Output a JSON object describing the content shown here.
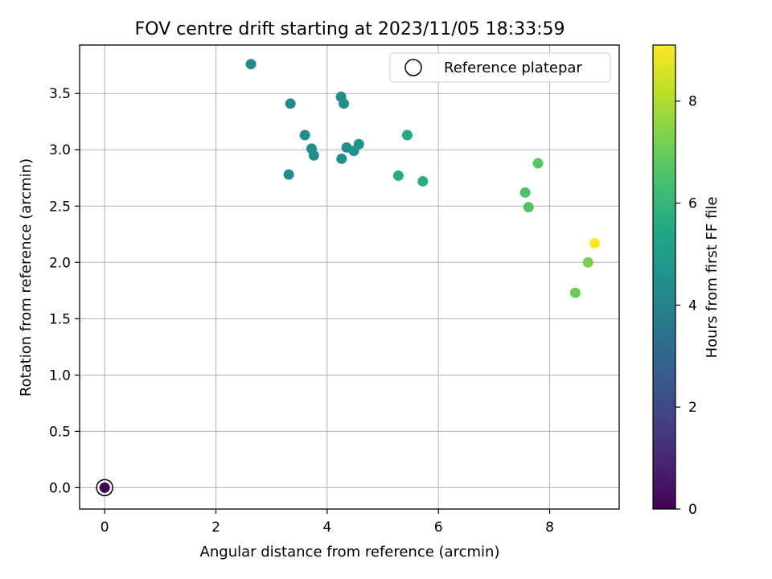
{
  "chart_data": {
    "type": "scatter",
    "title": "FOV centre drift starting at 2023/11/05 18:33:59",
    "xlabel": "Angular distance from reference (arcmin)",
    "ylabel": "Rotation from reference (arcmin)",
    "xlim": [
      -0.45,
      9.25
    ],
    "ylim": [
      -0.19,
      3.93
    ],
    "xticks": [
      0,
      2,
      4,
      6,
      8
    ],
    "xtick_labels": [
      "0",
      "2",
      "4",
      "6",
      "8"
    ],
    "yticks": [
      0.0,
      0.5,
      1.0,
      1.5,
      2.0,
      2.5,
      3.0,
      3.5
    ],
    "ytick_labels": [
      "0.0",
      "0.5",
      "1.0",
      "1.5",
      "2.0",
      "2.5",
      "3.0",
      "3.5"
    ],
    "grid": true,
    "legend": {
      "position": "upper-right",
      "entries": [
        {
          "label": "Reference platepar",
          "marker": "open-circle"
        }
      ]
    },
    "colorbar": {
      "label": "Hours from first FF file",
      "colormap": "viridis",
      "range": [
        0,
        9.1
      ],
      "ticks": [
        0,
        2,
        4,
        6,
        8
      ],
      "tick_labels": [
        "0",
        "2",
        "4",
        "6",
        "8"
      ]
    },
    "reference_point": {
      "x": 0,
      "y": 0
    },
    "points": [
      {
        "x": 0.0,
        "y": 0.0,
        "hours": 0.0
      },
      {
        "x": 2.63,
        "y": 3.76,
        "hours": 4.3
      },
      {
        "x": 3.34,
        "y": 3.41,
        "hours": 4.3
      },
      {
        "x": 3.6,
        "y": 3.13,
        "hours": 4.35
      },
      {
        "x": 3.72,
        "y": 3.01,
        "hours": 4.35
      },
      {
        "x": 3.76,
        "y": 2.95,
        "hours": 4.35
      },
      {
        "x": 3.31,
        "y": 2.78,
        "hours": 4.3
      },
      {
        "x": 4.25,
        "y": 3.47,
        "hours": 4.45
      },
      {
        "x": 4.3,
        "y": 3.41,
        "hours": 4.45
      },
      {
        "x": 4.35,
        "y": 3.02,
        "hours": 4.5
      },
      {
        "x": 4.48,
        "y": 2.99,
        "hours": 4.55
      },
      {
        "x": 4.57,
        "y": 3.05,
        "hours": 4.6
      },
      {
        "x": 4.26,
        "y": 2.92,
        "hours": 4.5
      },
      {
        "x": 5.44,
        "y": 3.13,
        "hours": 5.4
      },
      {
        "x": 5.28,
        "y": 2.77,
        "hours": 5.55
      },
      {
        "x": 5.72,
        "y": 2.72,
        "hours": 5.7
      },
      {
        "x": 7.56,
        "y": 2.62,
        "hours": 6.5
      },
      {
        "x": 7.62,
        "y": 2.49,
        "hours": 6.55
      },
      {
        "x": 7.79,
        "y": 2.88,
        "hours": 6.7
      },
      {
        "x": 8.46,
        "y": 1.73,
        "hours": 7.05
      },
      {
        "x": 8.69,
        "y": 2.0,
        "hours": 7.2
      },
      {
        "x": 8.81,
        "y": 2.17,
        "hours": 9.1
      }
    ]
  }
}
